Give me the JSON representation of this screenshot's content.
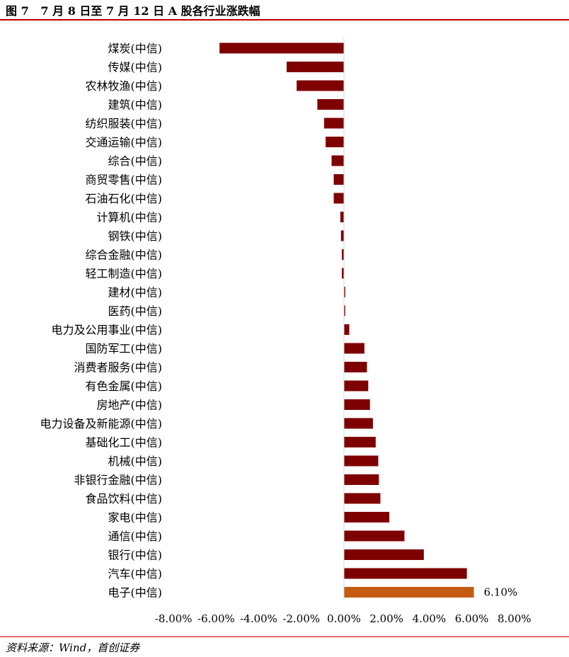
{
  "header": {
    "title": "图 7   7 月 8 日至 7 月 12 日 A 股各行业涨跌幅"
  },
  "footer": {
    "source": "资料来源：Wind，首创证券"
  },
  "colors": {
    "bar": "#7f0000",
    "highlight": "#c55a11",
    "rule": "#c00000"
  },
  "chart_data": {
    "type": "bar",
    "orientation": "horizontal",
    "title": "图 7   7 月 8 日至 7 月 12 日 A 股各行业涨跌幅",
    "xlabel": "",
    "ylabel": "",
    "xlim": [
      -8,
      8
    ],
    "grid": false,
    "legend": "none",
    "x_ticks": [
      "-8.00%",
      "-6.00%",
      "-4.00%",
      "-2.00%",
      "0.00%",
      "2.00%",
      "4.00%",
      "6.00%",
      "8.00%"
    ],
    "x_tick_values": [
      -8,
      -6,
      -4,
      -2,
      0,
      2,
      4,
      6,
      8
    ],
    "categories": [
      "煤炭(中信)",
      "传媒(中信)",
      "农林牧渔(中信)",
      "建筑(中信)",
      "纺织服装(中信)",
      "交通运输(中信)",
      "综合(中信)",
      "商贸零售(中信)",
      "石油石化(中信)",
      "计算机(中信)",
      "钢铁(中信)",
      "综合金融(中信)",
      "轻工制造(中信)",
      "建材(中信)",
      "医药(中信)",
      "电力及公用事业(中信)",
      "国防军工(中信)",
      "消费者服务(中信)",
      "有色金属(中信)",
      "房地产(中信)",
      "电力设备及新能源(中信)",
      "基础化工(中信)",
      "机械(中信)",
      "非银行金融(中信)",
      "食品饮料(中信)",
      "家电(中信)",
      "通信(中信)",
      "银行(中信)",
      "汽车(中信)",
      "电子(中信)"
    ],
    "values": [
      -5.84,
      -2.69,
      -2.22,
      -1.25,
      -0.93,
      -0.86,
      -0.58,
      -0.48,
      -0.48,
      -0.17,
      -0.14,
      -0.1,
      -0.1,
      0.06,
      0.06,
      0.25,
      0.96,
      1.08,
      1.14,
      1.22,
      1.36,
      1.49,
      1.61,
      1.64,
      1.71,
      2.13,
      2.84,
      3.75,
      5.77,
      6.1
    ],
    "highlight_index": 29,
    "data_labels": [
      {
        "index": 29,
        "text": "6.10%"
      }
    ]
  }
}
